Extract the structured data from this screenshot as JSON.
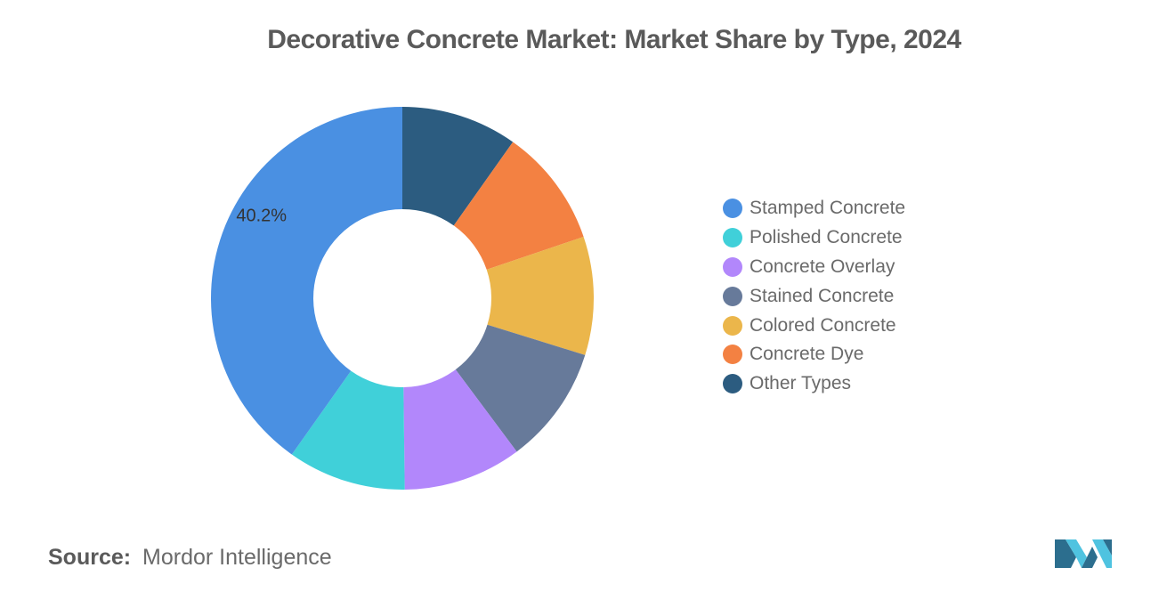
{
  "chart_data": {
    "type": "pie",
    "title": "Decorative Concrete Market: Market Share by Type, 2024",
    "donut": true,
    "categories": [
      "Stamped Concrete",
      "Polished Concrete",
      "Concrete Overlay",
      "Stained Concrete",
      "Colored Concrete",
      "Concrete Dye",
      "Other Types"
    ],
    "values": [
      40.2,
      10.0,
      10.0,
      10.0,
      10.0,
      10.0,
      9.8
    ],
    "colors": [
      "#4a90e2",
      "#40d0d9",
      "#b287fb",
      "#677a9a",
      "#ebb64b",
      "#f38142",
      "#2c5c80"
    ],
    "data_labels": [
      "40.2%",
      "",
      "",
      "",
      "",
      "",
      ""
    ],
    "legend_position": "right"
  },
  "source": {
    "label": "Source:",
    "text": "Mordor Intelligence"
  },
  "logo": {
    "icon": "mordor-intelligence-logo",
    "colors": [
      "#2c6e8e",
      "#4fc3e0"
    ]
  }
}
